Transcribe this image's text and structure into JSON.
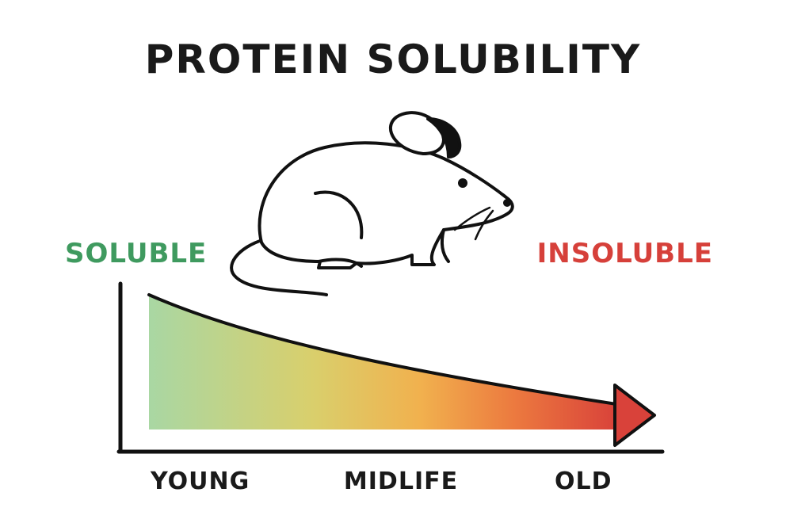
{
  "title": "PROTEIN SOLUBILITY",
  "labels": {
    "left": "SOLUBLE",
    "right": "INSOLUBLE"
  },
  "x_axis": {
    "stages": [
      "YOUNG",
      "MIDLIFE",
      "OLD"
    ]
  },
  "colors": {
    "soluble": "#3f9a5f",
    "insoluble": "#d6403a",
    "gradient": [
      "#a9d7a3",
      "#d9cf6c",
      "#f1b14e",
      "#ec7a3f",
      "#d9423a"
    ],
    "ink": "#111111"
  },
  "icons": {
    "subject": "mouse-icon",
    "trend": "arrow-right-icon"
  }
}
